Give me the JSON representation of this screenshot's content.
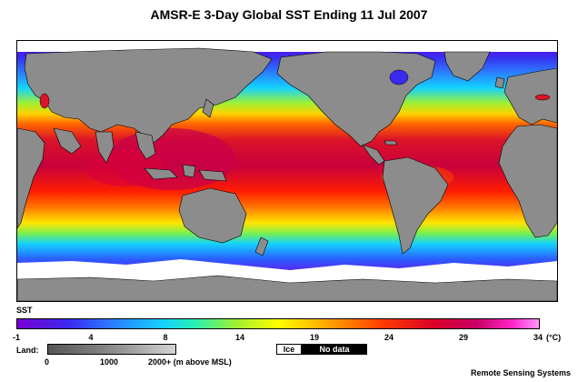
{
  "title": "AMSR-E 3-Day Global SST Ending 11 Jul 2007",
  "legend": {
    "sst_label": "SST",
    "sst_ticks": [
      "-1",
      "4",
      "8",
      "14",
      "19",
      "24",
      "29",
      "34"
    ],
    "sst_unit": "(°C)",
    "land_label": "Land:",
    "land_ticks": [
      "0",
      "1000",
      "2000+ (m above MSL)"
    ],
    "ice_label": "Ice",
    "nodata_label": "No data"
  },
  "credit": "Remote Sensing Systems",
  "colors": {
    "land": "#8c8c8c",
    "ice": "#ffffff",
    "no_data": "#000000",
    "sst_cold": "#7a00d2",
    "sst_warm": "#dc0028"
  }
}
